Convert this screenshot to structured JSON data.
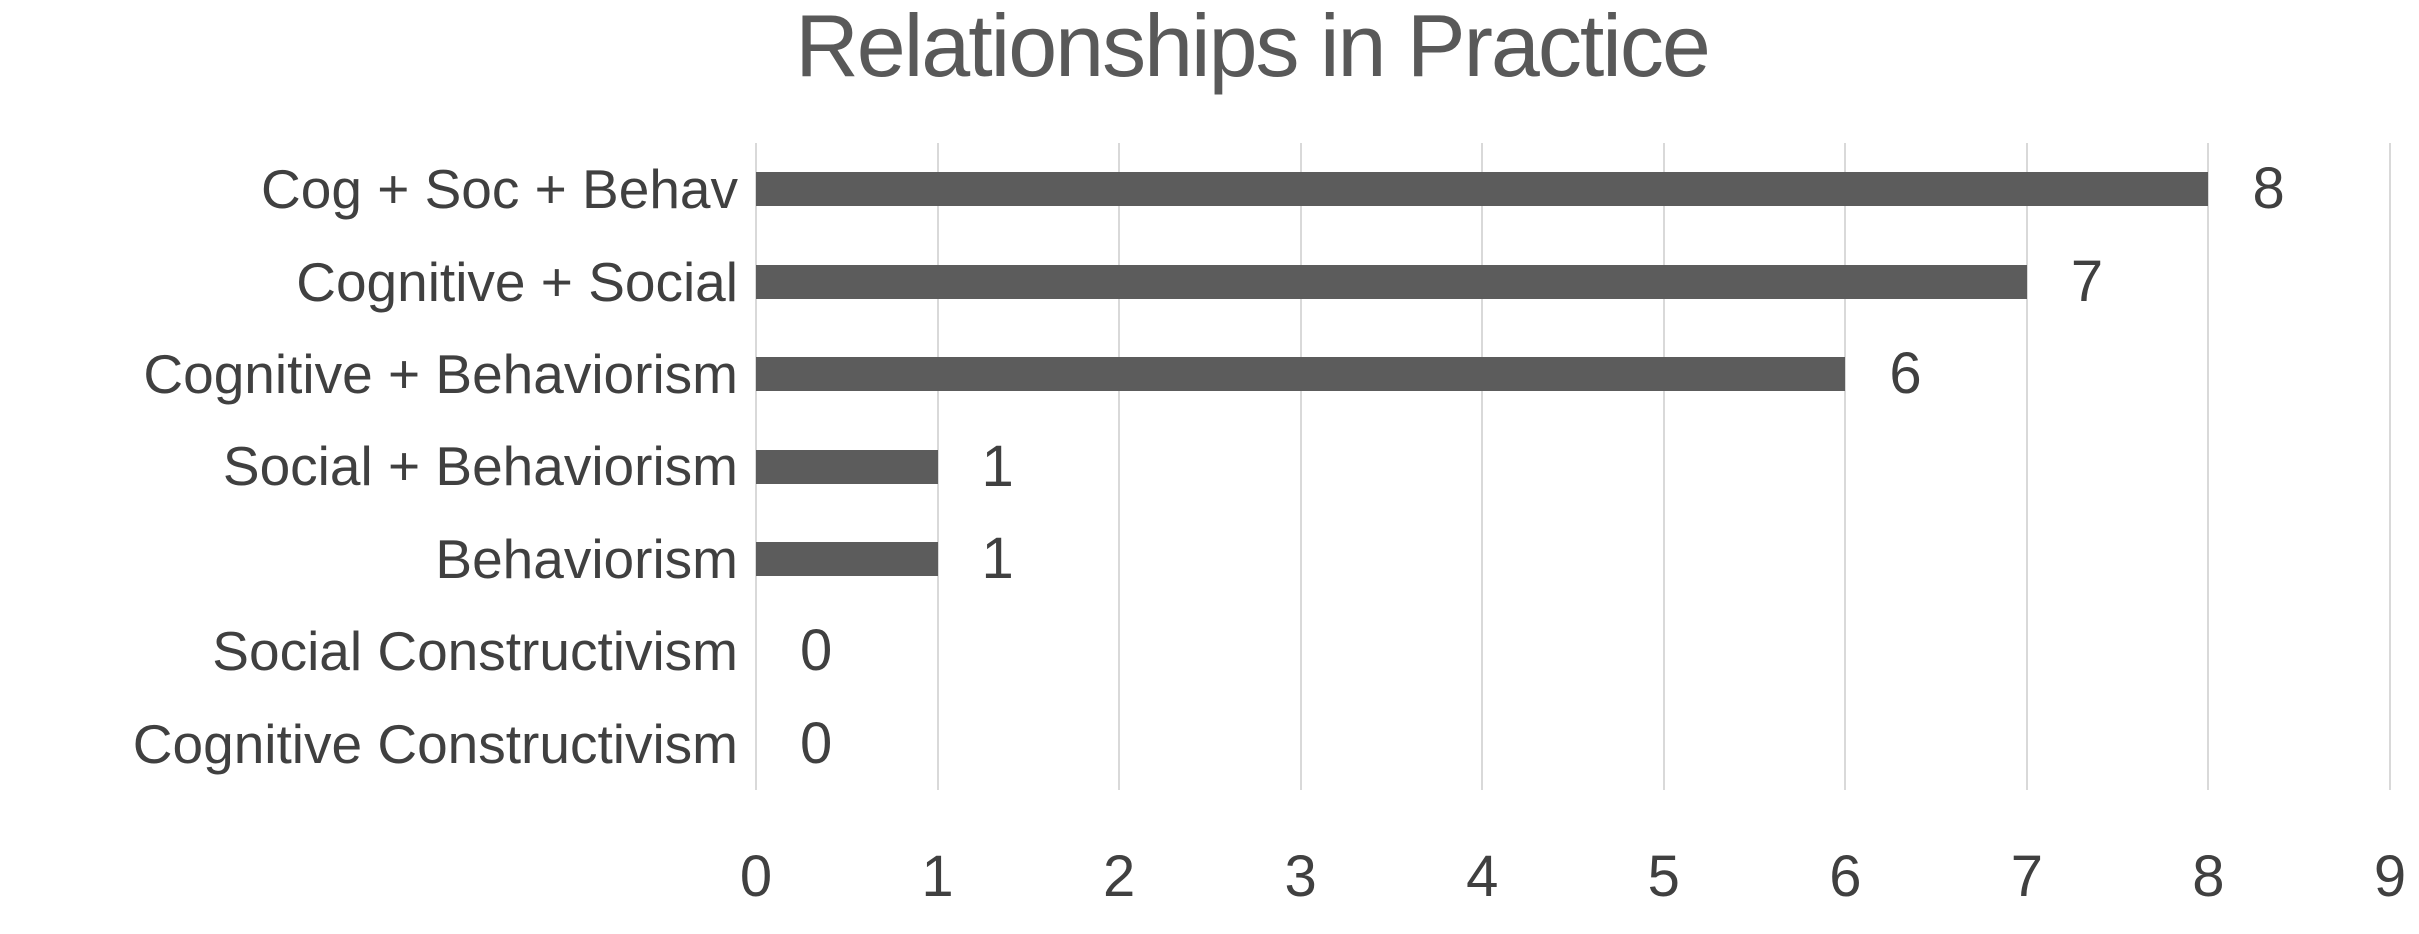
{
  "chart_data": {
    "type": "bar",
    "orientation": "horizontal",
    "title": "Relationships in Practice",
    "categories": [
      "Cog + Soc + Behav",
      "Cognitive + Social",
      "Cognitive + Behaviorism",
      "Social + Behaviorism",
      "Behaviorism",
      "Social Constructivism",
      "Cognitive Constructivism"
    ],
    "values": [
      8,
      7,
      6,
      1,
      1,
      0,
      0
    ],
    "data_labels": [
      "8",
      "7",
      "6",
      "1",
      "1",
      "0",
      "0"
    ],
    "xlabel": "",
    "ylabel": "",
    "xlim": [
      0,
      9
    ],
    "x_ticks": [
      0,
      1,
      2,
      3,
      4,
      5,
      6,
      7,
      8,
      9
    ],
    "grid": true,
    "legend": false,
    "colors": {
      "bar": "#5c5c5c",
      "title": "#595959",
      "text": "#404040",
      "gridline": "#d9d9d9",
      "background": "#ffffff"
    }
  }
}
